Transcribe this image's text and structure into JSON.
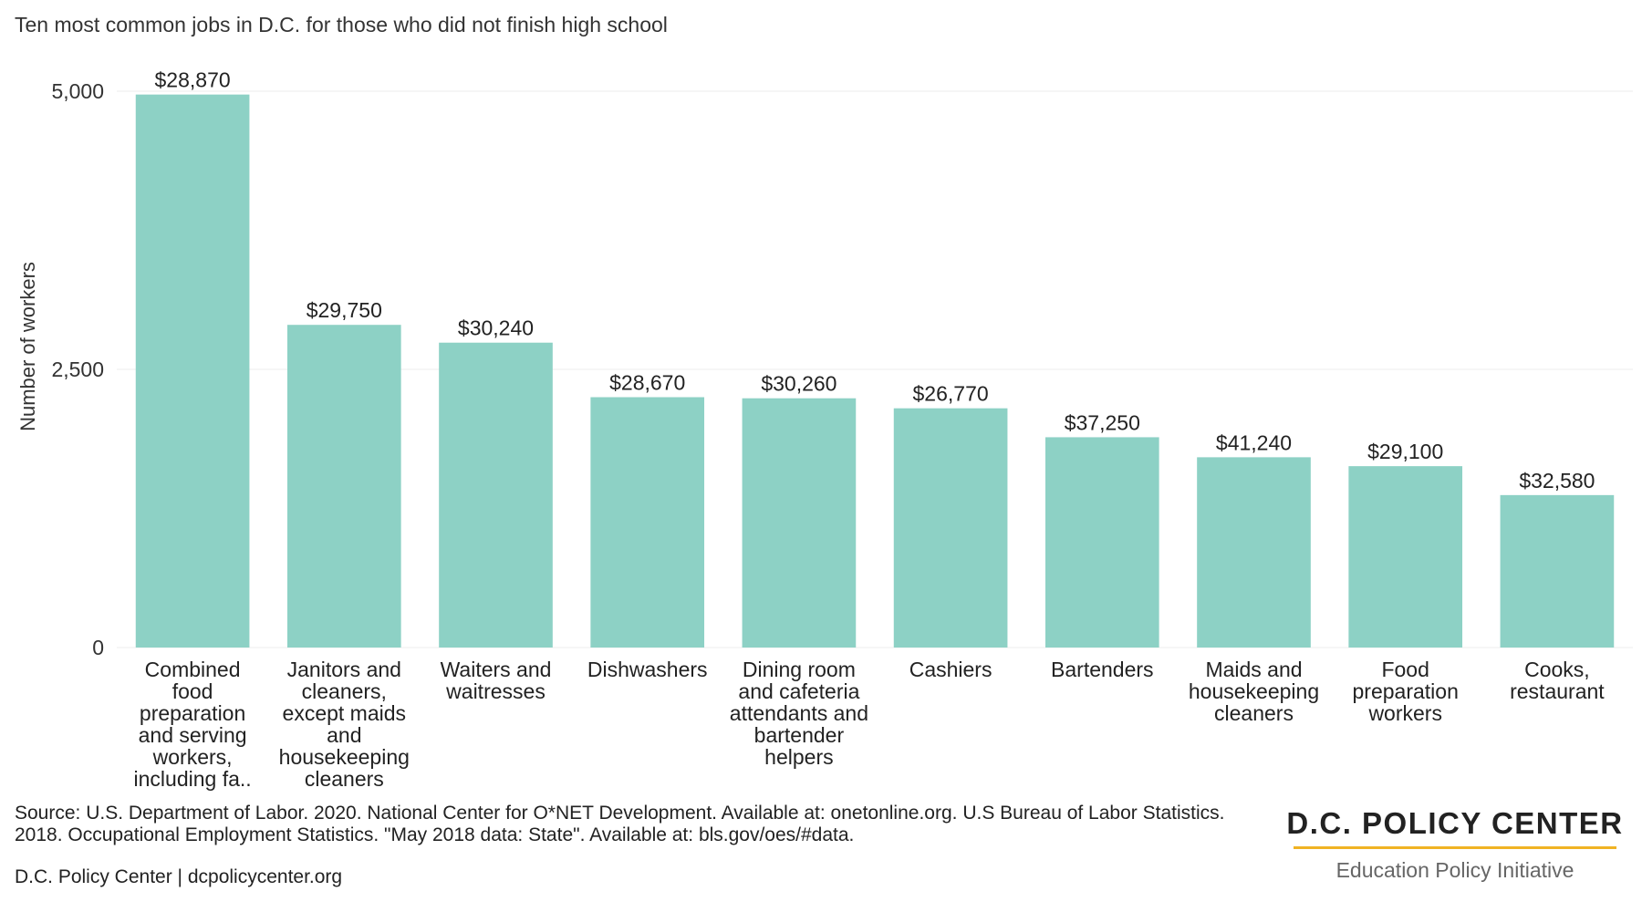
{
  "chart_data": {
    "type": "bar",
    "title": "Ten most common jobs in D.C. for those who did not finish high school",
    "xlabel": "",
    "ylabel": "Number of workers",
    "ylim": [
      0,
      5000
    ],
    "yticks": [
      {
        "value": 0,
        "label": "0"
      },
      {
        "value": 2500,
        "label": "2,500"
      },
      {
        "value": 5000,
        "label": "5,000"
      }
    ],
    "grid": true,
    "color": "#8dd1c5",
    "categories": [
      [
        "Combined",
        "food",
        "preparation",
        "and serving",
        "workers,",
        "including fa.."
      ],
      [
        "Janitors and",
        "cleaners,",
        "except maids",
        "and",
        "housekeeping",
        "cleaners"
      ],
      [
        "Waiters and",
        "waitresses"
      ],
      [
        "Dishwashers"
      ],
      [
        "Dining room",
        "and cafeteria",
        "attendants and",
        "bartender",
        "helpers"
      ],
      [
        "Cashiers"
      ],
      [
        "Bartenders"
      ],
      [
        "Maids and",
        "housekeeping",
        "cleaners"
      ],
      [
        "Food",
        "preparation",
        "workers"
      ],
      [
        "Cooks,",
        "restaurant"
      ]
    ],
    "values": [
      4970,
      2900,
      2740,
      2250,
      2240,
      2150,
      1890,
      1710,
      1630,
      1370
    ],
    "data_labels": [
      "$28,870",
      "$29,750",
      "$30,240",
      "$28,670",
      "$30,260",
      "$26,770",
      "$37,250",
      "$41,240",
      "$29,100",
      "$32,580"
    ]
  },
  "footer": {
    "source": "Source: U.S. Department of Labor. 2020. National Center for O*NET Development. Available at: onetonline.org. U.S Bureau of Labor Statistics. 2018. Occupational Employment Statistics. \"May 2018 data: State\". Available at: bls.gov/oes/#data.",
    "credit": "D.C. Policy Center | dcpolicycenter.org"
  },
  "brand": {
    "name": "D.C. POLICY CENTER",
    "subtitle": "Education Policy Initiative"
  }
}
